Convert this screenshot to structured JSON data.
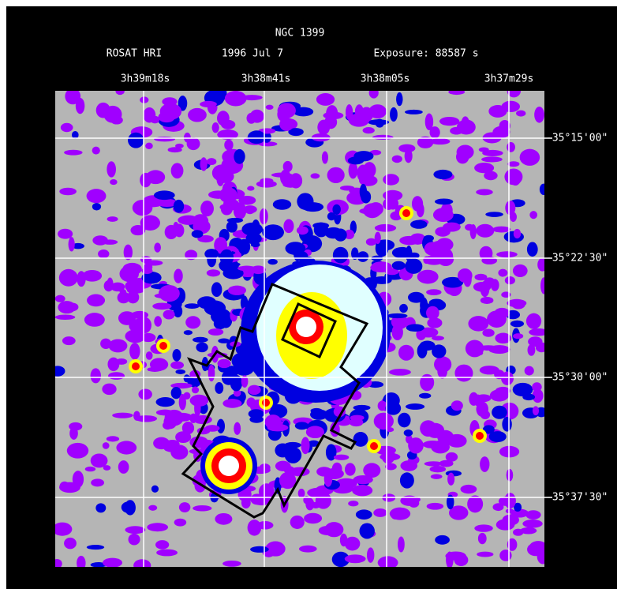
{
  "header": {
    "title": "NGC 1399",
    "instrument": "ROSAT HRI",
    "date": "1996 Jul 7",
    "exposure": "Exposure: 88587 s"
  },
  "ra_labels": [
    "3h39m18s",
    "3h38m41s",
    "3h38m05s",
    "3h37m29s"
  ],
  "dec_labels": [
    "-35°15'00\"",
    "-35°22'30\"",
    "-35°30'00\"",
    "-35°37'30\""
  ]
}
